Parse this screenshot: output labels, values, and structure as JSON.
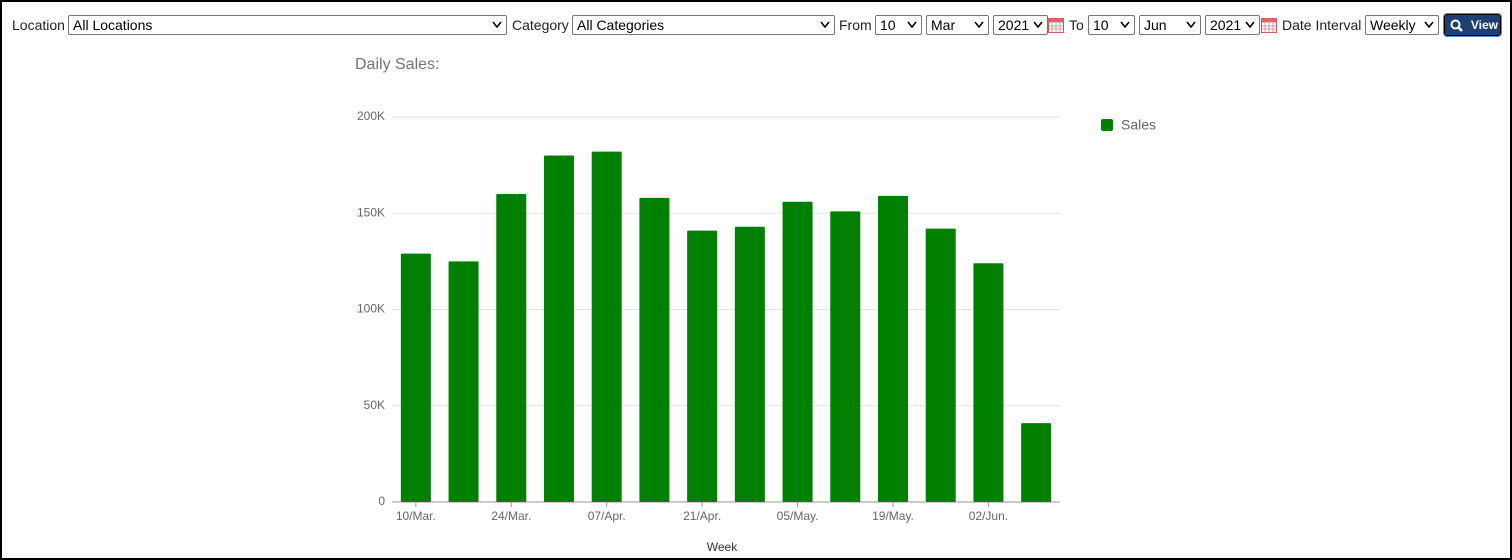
{
  "toolbar": {
    "location_label": "Location",
    "location": "All Locations",
    "category_label": "Category",
    "category": "All Categories",
    "from_label": "From",
    "from_day": "10",
    "from_month": "Mar",
    "from_year": "2021",
    "to_label": "To",
    "to_day": "10",
    "to_month": "Jun",
    "to_year": "2021",
    "interval_label": "Date Interval",
    "interval": "Weekly",
    "button": "View"
  },
  "chart_data": {
    "type": "bar",
    "title": "Daily Sales:",
    "x_label": "Week",
    "categories": [
      "10/Mar.",
      null,
      "24/Mar.",
      null,
      "07/Apr.",
      null,
      "21/Apr.",
      null,
      "05/May.",
      null,
      "19/May.",
      null,
      "02/Jun.",
      null
    ],
    "series": [
      {
        "name": "Sales",
        "color": "#008000",
        "values": [
          129000,
          125000,
          160000,
          180000,
          182000,
          158000,
          141000,
          143000,
          156000,
          151000,
          159000,
          142000,
          124000,
          41000
        ]
      }
    ],
    "ylim": [
      0,
      200000
    ],
    "yticks": [
      0,
      {
        "value": 50000,
        "label": "50K"
      },
      {
        "value": 100000,
        "label": "100K"
      },
      {
        "value": 150000,
        "label": "150K"
      },
      {
        "value": 200000,
        "label": "200K"
      }
    ],
    "grid": true,
    "legend": "right"
  }
}
